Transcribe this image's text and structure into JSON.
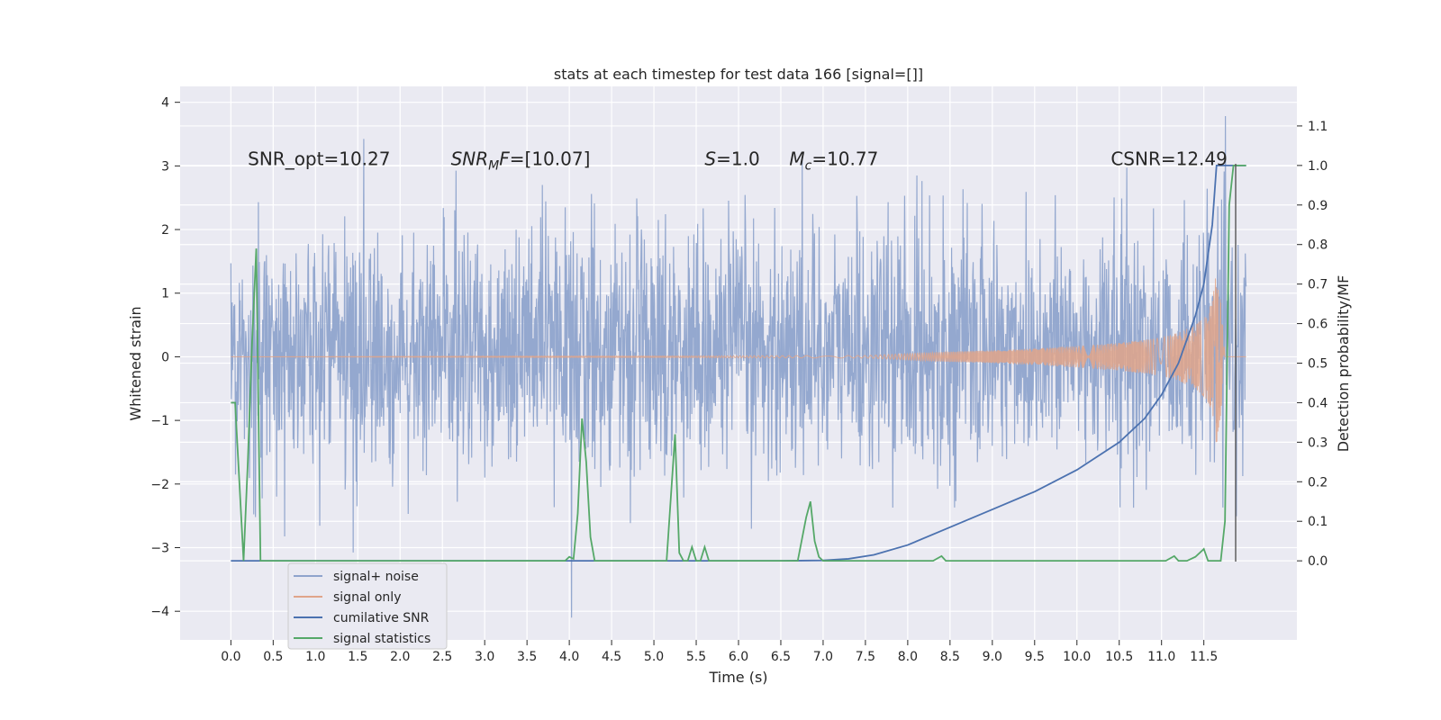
{
  "chart_data": {
    "type": "line",
    "title": "stats at each timestep for test data 166 [signal=[]]",
    "xlabel": "Time (s)",
    "ylabel_left": "Whitened strain",
    "ylabel_right": "Detection probability/MF",
    "xlim": [
      -0.6,
      12.6
    ],
    "ylim_left": [
      -4.45,
      4.25
    ],
    "ylim_right": [
      -0.2,
      1.2
    ],
    "grid": true,
    "x_ticks": [
      0.0,
      0.5,
      1.0,
      1.5,
      2.0,
      2.5,
      3.0,
      3.5,
      4.0,
      4.5,
      5.0,
      5.5,
      6.0,
      6.5,
      7.0,
      7.5,
      8.0,
      8.5,
      9.0,
      9.5,
      10.0,
      10.5,
      11.0,
      11.5
    ],
    "x_tick_labels": [
      "0.0",
      "0.5",
      "1.0",
      "1.5",
      "2.0",
      "2.5",
      "3.0",
      "3.5",
      "4.0",
      "4.5",
      "5.0",
      "5.5",
      "6.0",
      "6.5",
      "7.0",
      "7.5",
      "8.0",
      "8.5",
      "9.0",
      "9.5",
      "10.0",
      "10.5",
      "11.0",
      "11.5"
    ],
    "y_left_ticks": [
      4,
      3,
      2,
      1,
      0,
      -1,
      -2,
      -3,
      -4
    ],
    "y_left_tick_labels": [
      "4",
      "3",
      "2",
      "1",
      "0",
      "−1",
      "−2",
      "−3",
      "−4"
    ],
    "y_right_ticks": [
      1.1,
      1.0,
      0.9,
      0.8,
      0.7,
      0.6,
      0.5,
      0.4,
      0.3,
      0.2,
      0.1,
      0.0
    ],
    "y_right_tick_labels": [
      "1.1",
      "1.0",
      "0.9",
      "0.8",
      "0.7",
      "0.6",
      "0.5",
      "0.4",
      "0.3",
      "0.2",
      "0.1",
      "0.0"
    ],
    "annotations": [
      {
        "text": "SNR_opt=10.27",
        "x": 0.2,
        "y": 3.0
      },
      {
        "text": "SNR",
        "sub": "M",
        "tail": "F=[10.07]",
        "italic": true,
        "x": 2.6,
        "y": 3.0
      },
      {
        "text": "S",
        "tail": "=1.0",
        "italic": true,
        "x": 5.6,
        "y": 3.0
      },
      {
        "text": "M",
        "sub": "c",
        "tail": "=10.77",
        "italic": true,
        "x": 6.6,
        "y": 3.0
      },
      {
        "text": "CSNR=12.49",
        "x": 10.4,
        "y": 3.0
      }
    ],
    "legend": {
      "position": "lower-left",
      "entries": [
        {
          "label": "signal+ noise",
          "color": "#8fa4cc"
        },
        {
          "label": "signal only",
          "color": "#e0a58a"
        },
        {
          "label": "cumilative SNR",
          "color": "#4c72b0"
        },
        {
          "label": "signal statistics",
          "color": "#55a868"
        }
      ]
    },
    "series": [
      {
        "name": "signal+ noise",
        "axis": "left",
        "color": "#8fa4cc",
        "x_range": [
          0.0,
          12.0
        ],
        "envelope_typical": [
          -1.5,
          1.8
        ],
        "envelope_extreme": [
          -4.1,
          3.85
        ]
      },
      {
        "name": "signal only",
        "axis": "left",
        "color": "#e0a58a",
        "x": [
          0.0,
          7.5,
          8.0,
          8.5,
          9.0,
          9.5,
          10.0,
          10.5,
          11.0,
          11.2,
          11.4,
          11.5,
          11.6,
          11.65,
          11.7,
          11.75,
          12.0
        ],
        "amplitude": [
          0.0,
          0.02,
          0.05,
          0.08,
          0.1,
          0.13,
          0.17,
          0.22,
          0.3,
          0.38,
          0.5,
          0.62,
          0.85,
          1.4,
          0.9,
          0.0,
          0.0
        ]
      },
      {
        "name": "cumilative SNR",
        "axis": "right",
        "color": "#4c72b0",
        "x": [
          0.0,
          6.5,
          7.0,
          7.3,
          7.6,
          8.0,
          8.5,
          9.0,
          9.5,
          10.0,
          10.5,
          10.8,
          11.0,
          11.2,
          11.4,
          11.5,
          11.6,
          11.65,
          11.7,
          11.9,
          12.0
        ],
        "y": [
          0.0,
          0.0,
          0.001,
          0.005,
          0.015,
          0.04,
          0.085,
          0.13,
          0.175,
          0.23,
          0.3,
          0.36,
          0.42,
          0.5,
          0.62,
          0.7,
          0.85,
          1.0,
          1.0,
          1.0,
          1.0
        ]
      },
      {
        "name": "signal statistics",
        "axis": "right",
        "color": "#55a868",
        "x": [
          0.0,
          0.05,
          0.1,
          0.15,
          0.2,
          0.25,
          0.3,
          0.35,
          0.4,
          3.95,
          4.0,
          4.05,
          4.1,
          4.15,
          4.2,
          4.25,
          4.3,
          4.35,
          5.15,
          5.25,
          5.3,
          5.35,
          5.4,
          5.45,
          5.5,
          5.55,
          5.6,
          5.65,
          5.7,
          6.7,
          6.8,
          6.85,
          6.9,
          6.95,
          7.0,
          7.05,
          8.3,
          8.4,
          8.45,
          11.05,
          11.15,
          11.2,
          11.3,
          11.4,
          11.5,
          11.55,
          11.6,
          11.7,
          11.75,
          11.8,
          11.85,
          11.9,
          12.0
        ],
        "y": [
          0.4,
          0.4,
          0.2,
          0.0,
          0.25,
          0.55,
          0.79,
          0.0,
          0.0,
          0.0,
          0.01,
          0.005,
          0.12,
          0.36,
          0.25,
          0.06,
          0.0,
          0.0,
          0.0,
          0.32,
          0.02,
          0.0,
          0.0,
          0.035,
          0.0,
          0.0,
          0.035,
          0.0,
          0.0,
          0.0,
          0.11,
          0.15,
          0.05,
          0.01,
          0.0,
          0.0,
          0.0,
          0.012,
          0.0,
          0.0,
          0.012,
          0.0,
          0.0,
          0.01,
          0.03,
          0.0,
          0.0,
          0.0,
          0.1,
          0.9,
          1.0,
          1.0,
          1.0
        ]
      }
    ]
  }
}
